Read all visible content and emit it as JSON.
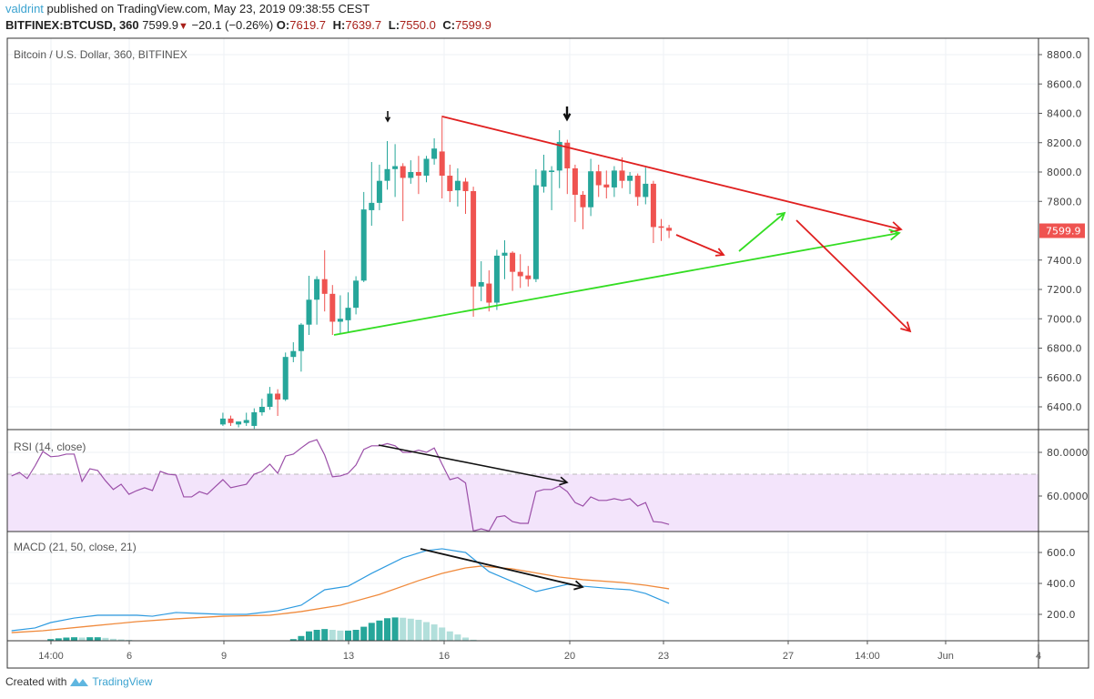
{
  "header": {
    "user": "valdrint",
    "published_text": "published on TradingView.com, May 23, 2019 09:38:55 CEST",
    "symbol": "BITFINEX:BTCUSD, 360",
    "last": "7599.9",
    "change": "−20.1 (−0.26%)",
    "change_direction": "down",
    "open_label": "O:",
    "open": "7619.7",
    "high_label": "H:",
    "high": "7639.7",
    "low_label": "L:",
    "low": "7550.0",
    "close_label": "C:",
    "close": "7599.9"
  },
  "footer": {
    "created_with": "Created with",
    "brand": "TradingView"
  },
  "colors": {
    "up": "#26a69a",
    "down": "#ef5350",
    "hist_up": "#26a69a",
    "hist_down": "#b2dfdb",
    "rsi": "#9b4fa8",
    "rsi_band": "#f3e4fb",
    "macd": "#2e9be0",
    "signal": "#f08a3c",
    "trend_down": "#e02020",
    "trend_up": "#33dd22",
    "annotation": "#111111",
    "price_badge": "#ef5350"
  },
  "chart_data": [
    {
      "type": "candlestick",
      "title": "Bitcoin / U.S. Dollar, 360, BITFINEX",
      "y_ticks": [
        "8800.0",
        "8600.0",
        "8400.0",
        "8200.0",
        "8000.0",
        "7800.0",
        "7400.0",
        "7200.0",
        "7000.0",
        "6800.0",
        "6600.0",
        "6400.0"
      ],
      "current_price": "7599.9",
      "ylim": [
        6250,
        8910
      ],
      "grid": true,
      "x_ticks": [
        "14:00",
        "6",
        "9",
        "13",
        "16",
        "20",
        "23",
        "27",
        "14:00",
        "Jun",
        "4"
      ],
      "ohlc_columns": [
        "time",
        "open",
        "high",
        "low",
        "close"
      ],
      "candles": [
        [
          "05-09 00:00",
          6280,
          6360,
          6270,
          6320
        ],
        [
          "05-09 06:00",
          6320,
          6340,
          6270,
          6290
        ],
        [
          "05-09 12:00",
          6280,
          6300,
          6260,
          6300
        ],
        [
          "05-09 18:00",
          6290,
          6360,
          6270,
          6310
        ],
        [
          "05-10 00:00",
          6270,
          6390,
          6250,
          6363
        ],
        [
          "05-10 06:00",
          6363,
          6456,
          6340,
          6400
        ],
        [
          "05-10 12:00",
          6400,
          6536,
          6380,
          6490
        ],
        [
          "05-10 18:00",
          6490,
          6520,
          6338,
          6450
        ],
        [
          "05-11 00:00",
          6450,
          6770,
          6440,
          6740
        ],
        [
          "05-11 06:00",
          6740,
          6840,
          6704,
          6780
        ],
        [
          "05-11 12:00",
          6780,
          6970,
          6640,
          6960
        ],
        [
          "05-11 18:00",
          6960,
          7293,
          6890,
          7130
        ],
        [
          "05-12 00:00",
          7130,
          7290,
          6960,
          7270
        ],
        [
          "05-12 06:00",
          7270,
          7467,
          7050,
          7170
        ],
        [
          "05-12 12:00",
          7170,
          7230,
          6890,
          6980
        ],
        [
          "05-12 18:00",
          6980,
          7160,
          6900,
          7000
        ],
        [
          "05-13 00:00",
          6990,
          7180,
          6910,
          7075
        ],
        [
          "05-13 06:00",
          7075,
          7290,
          7030,
          7260
        ],
        [
          "05-13 12:00",
          7260,
          7864,
          7250,
          7745
        ],
        [
          "05-13 18:00",
          7740,
          8068,
          7634,
          7790
        ],
        [
          "05-14 00:00",
          7790,
          8050,
          7740,
          7940
        ],
        [
          "05-14 06:00",
          7940,
          8211,
          7880,
          8020
        ],
        [
          "05-14 12:00",
          8020,
          8190,
          7830,
          8040
        ],
        [
          "05-14 18:00",
          8040,
          8060,
          7665,
          7960
        ],
        [
          "05-15 00:00",
          7960,
          8080,
          7920,
          8000
        ],
        [
          "05-15 06:00",
          8000,
          8110,
          7850,
          7975
        ],
        [
          "05-15 12:00",
          7975,
          8110,
          7930,
          8090
        ],
        [
          "05-15 18:00",
          8090,
          8230,
          8050,
          8160
        ],
        [
          "05-16 00:00",
          8140,
          8384,
          7820,
          7975
        ],
        [
          "05-16 06:00",
          7975,
          8050,
          7795,
          7870
        ],
        [
          "05-16 12:00",
          7875,
          8025,
          7765,
          7940
        ],
        [
          "05-16 18:00",
          7935,
          7960,
          7715,
          7870
        ],
        [
          "05-17 00:00",
          7870,
          7900,
          7014,
          7220
        ],
        [
          "05-17 06:00",
          7220,
          7392,
          7120,
          7250
        ],
        [
          "05-17 12:00",
          7240,
          7330,
          7050,
          7110
        ],
        [
          "05-17 18:00",
          7110,
          7470,
          7060,
          7430
        ],
        [
          "05-18 00:00",
          7430,
          7535,
          7270,
          7450
        ],
        [
          "05-18 06:00",
          7450,
          7460,
          7190,
          7320
        ],
        [
          "05-18 12:00",
          7320,
          7440,
          7210,
          7290
        ],
        [
          "05-18 18:00",
          7295,
          7360,
          7220,
          7270
        ],
        [
          "05-19 00:00",
          7270,
          8019,
          7250,
          7910
        ],
        [
          "05-19 06:00",
          7900,
          8118,
          7860,
          8010
        ],
        [
          "05-19 12:00",
          8000,
          8040,
          7740,
          8010
        ],
        [
          "05-19 18:00",
          8010,
          8285,
          7890,
          8205
        ],
        [
          "05-20 00:00",
          8200,
          8220,
          7850,
          8025
        ],
        [
          "05-20 06:00",
          8025,
          8050,
          7660,
          7845
        ],
        [
          "05-20 12:00",
          7845,
          7870,
          7610,
          7760
        ],
        [
          "05-20 18:00",
          7760,
          8090,
          7700,
          8005
        ],
        [
          "05-21 00:00",
          8005,
          8050,
          7830,
          7910
        ],
        [
          "05-21 06:00",
          7915,
          8010,
          7820,
          7895
        ],
        [
          "05-21 12:00",
          7895,
          8040,
          7830,
          8010
        ],
        [
          "05-21 18:00",
          8010,
          8100,
          7890,
          7940
        ],
        [
          "05-22 00:00",
          7940,
          8000,
          7850,
          7975
        ],
        [
          "05-22 06:00",
          7975,
          7990,
          7770,
          7830
        ],
        [
          "05-22 12:00",
          7830,
          8030,
          7780,
          7920
        ],
        [
          "05-22 18:00",
          7920,
          7940,
          7516,
          7625
        ],
        [
          "05-23 00:00",
          7630,
          7680,
          7530,
          7620
        ],
        [
          "05-23 06:00",
          7619.7,
          7639.7,
          7550.0,
          7599.9
        ]
      ]
    },
    {
      "type": "line",
      "title": "RSI (14, close)",
      "y_ticks": [
        "80.0000",
        "60.0000"
      ],
      "band": [
        30,
        70
      ],
      "points": [
        [
          "05-02 06:00",
          69.2
        ],
        [
          "05-02 12:00",
          70.8
        ],
        [
          "05-02 18:00",
          68
        ],
        [
          "05-03 00:00",
          73.8
        ],
        [
          "05-03 06:00",
          80.4
        ],
        [
          "05-03 12:00",
          78
        ],
        [
          "05-03 18:00",
          78.3
        ],
        [
          "05-04 00:00",
          79.2
        ],
        [
          "05-04 06:00",
          79.2
        ],
        [
          "05-04 12:00",
          66.7
        ],
        [
          "05-04 18:00",
          72.5
        ],
        [
          "05-05 00:00",
          71.7
        ],
        [
          "05-05 06:00",
          67
        ],
        [
          "05-05 12:00",
          63
        ],
        [
          "05-05 18:00",
          65.4
        ],
        [
          "05-06 00:00",
          60.8
        ],
        [
          "05-06 06:00",
          62.5
        ],
        [
          "05-06 12:00",
          63.8
        ],
        [
          "05-06 18:00",
          62.5
        ],
        [
          "05-07 00:00",
          71.3
        ],
        [
          "05-07 06:00",
          70
        ],
        [
          "05-07 12:00",
          69.6
        ],
        [
          "05-07 18:00",
          59.6
        ],
        [
          "05-08 00:00",
          59.6
        ],
        [
          "05-08 06:00",
          62
        ],
        [
          "05-08 12:00",
          60.8
        ],
        [
          "05-08 18:00",
          64.2
        ],
        [
          "05-09 00:00",
          67.5
        ],
        [
          "05-09 06:00",
          63.8
        ],
        [
          "05-09 12:00",
          64.6
        ],
        [
          "05-09 18:00",
          65.4
        ],
        [
          "05-10 00:00",
          70
        ],
        [
          "05-10 06:00",
          71.3
        ],
        [
          "05-10 12:00",
          74.6
        ],
        [
          "05-10 18:00",
          70.4
        ],
        [
          "05-11 00:00",
          78.3
        ],
        [
          "05-11 06:00",
          79.2
        ],
        [
          "05-11 12:00",
          82
        ],
        [
          "05-11 18:00",
          84.6
        ],
        [
          "05-12 00:00",
          85.8
        ],
        [
          "05-12 06:00",
          78.8
        ],
        [
          "05-12 12:00",
          68.8
        ],
        [
          "05-12 18:00",
          69.2
        ],
        [
          "05-13 00:00",
          70.4
        ],
        [
          "05-13 06:00",
          74.2
        ],
        [
          "05-13 12:00",
          81.3
        ],
        [
          "05-13 18:00",
          83
        ],
        [
          "05-14 00:00",
          83
        ],
        [
          "05-14 06:00",
          84
        ],
        [
          "05-14 12:00",
          83
        ],
        [
          "05-14 18:00",
          80
        ],
        [
          "05-15 00:00",
          80
        ],
        [
          "05-15 06:00",
          81
        ],
        [
          "05-15 12:00",
          80
        ],
        [
          "05-15 18:00",
          82
        ],
        [
          "05-16 00:00",
          74.6
        ],
        [
          "05-16 06:00",
          67.5
        ],
        [
          "05-16 12:00",
          68.5
        ],
        [
          "05-16 18:00",
          66
        ],
        [
          "05-17 00:00",
          44
        ],
        [
          "05-17 06:00",
          45
        ],
        [
          "05-17 12:00",
          44
        ],
        [
          "05-17 18:00",
          50.4
        ],
        [
          "05-18 00:00",
          51
        ],
        [
          "05-18 06:00",
          48.3
        ],
        [
          "05-18 12:00",
          47.5
        ],
        [
          "05-18 18:00",
          47.5
        ],
        [
          "05-19 00:00",
          62
        ],
        [
          "05-19 06:00",
          63
        ],
        [
          "05-19 12:00",
          63
        ],
        [
          "05-19 18:00",
          64.6
        ],
        [
          "05-20 00:00",
          62
        ],
        [
          "05-20 06:00",
          57
        ],
        [
          "05-20 12:00",
          55.4
        ],
        [
          "05-20 18:00",
          59.6
        ],
        [
          "05-21 00:00",
          58
        ],
        [
          "05-21 06:00",
          58
        ],
        [
          "05-21 12:00",
          58.8
        ],
        [
          "05-21 18:00",
          58
        ],
        [
          "05-22 00:00",
          58.8
        ],
        [
          "05-22 06:00",
          55.4
        ],
        [
          "05-22 12:00",
          57
        ],
        [
          "05-22 18:00",
          48.3
        ],
        [
          "05-23 00:00",
          48
        ],
        [
          "05-23 06:00",
          47
        ]
      ]
    },
    {
      "type": "line",
      "title": "MACD (21, 50, close, 21)",
      "y_ticks": [
        "600.0",
        "400.0",
        "200.0"
      ],
      "macd": [
        [
          "05-02 06:00",
          94
        ],
        [
          "05-03 00:00",
          112
        ],
        [
          "05-03 12:00",
          147
        ],
        [
          "05-04 06:00",
          176
        ],
        [
          "05-05 00:00",
          194
        ],
        [
          "05-05 18:00",
          194
        ],
        [
          "05-06 06:00",
          194
        ],
        [
          "05-06 18:00",
          188
        ],
        [
          "05-07 12:00",
          212
        ],
        [
          "05-08 06:00",
          206
        ],
        [
          "05-09 00:00",
          200
        ],
        [
          "05-09 18:00",
          200
        ],
        [
          "05-10 18:00",
          224
        ],
        [
          "05-11 12:00",
          259
        ],
        [
          "05-12 06:00",
          359
        ],
        [
          "05-13 00:00",
          382
        ],
        [
          "05-13 18:00",
          465
        ],
        [
          "05-14 18:00",
          565
        ],
        [
          "05-15 12:00",
          612
        ],
        [
          "05-16 00:00",
          624
        ],
        [
          "05-16 18:00",
          600
        ],
        [
          "05-17 12:00",
          476
        ],
        [
          "05-19 00:00",
          347
        ],
        [
          "05-20 00:00",
          394
        ],
        [
          "05-20 12:00",
          382
        ],
        [
          "05-21 12:00",
          365
        ],
        [
          "05-22 00:00",
          359
        ],
        [
          "05-22 12:00",
          335
        ],
        [
          "05-23 06:00",
          271
        ]
      ],
      "signal": [
        [
          "05-02 06:00",
          82
        ],
        [
          "05-03 06:00",
          94
        ],
        [
          "05-04 18:00",
          124
        ],
        [
          "05-06 06:00",
          153
        ],
        [
          "05-07 12:00",
          171
        ],
        [
          "05-09 00:00",
          188
        ],
        [
          "05-10 12:00",
          194
        ],
        [
          "05-11 12:00",
          218
        ],
        [
          "05-12 18:00",
          259
        ],
        [
          "05-14 00:00",
          329
        ],
        [
          "05-15 06:00",
          418
        ],
        [
          "05-16 00:00",
          465
        ],
        [
          "05-16 18:00",
          500
        ],
        [
          "05-17 06:00",
          512
        ],
        [
          "05-18 06:00",
          494
        ],
        [
          "05-19 18:00",
          441
        ],
        [
          "05-20 12:00",
          424
        ],
        [
          "05-21 18:00",
          406
        ],
        [
          "05-22 12:00",
          388
        ],
        [
          "05-23 06:00",
          365
        ]
      ],
      "histogram": [
        [
          "05-03 12:00",
          40
        ],
        [
          "05-03 18:00",
          45
        ],
        [
          "05-04 00:00",
          50
        ],
        [
          "05-04 06:00",
          52
        ],
        [
          "05-04 12:00",
          50
        ],
        [
          "05-04 18:00",
          52
        ],
        [
          "05-05 00:00",
          52
        ],
        [
          "05-05 06:00",
          48
        ],
        [
          "05-05 12:00",
          42
        ],
        [
          "05-05 18:00",
          38
        ],
        [
          "05-06 00:00",
          35
        ],
        [
          "05-11 06:00",
          40
        ],
        [
          "05-11 12:00",
          60
        ],
        [
          "05-11 18:00",
          90
        ],
        [
          "05-12 00:00",
          100
        ],
        [
          "05-12 06:00",
          105
        ],
        [
          "05-12 12:00",
          100
        ],
        [
          "05-12 18:00",
          95
        ],
        [
          "05-13 00:00",
          95
        ],
        [
          "05-13 06:00",
          100
        ],
        [
          "05-13 12:00",
          120
        ],
        [
          "05-13 18:00",
          145
        ],
        [
          "05-14 00:00",
          160
        ],
        [
          "05-14 06:00",
          175
        ],
        [
          "05-14 12:00",
          180
        ],
        [
          "05-14 18:00",
          178
        ],
        [
          "05-15 00:00",
          172
        ],
        [
          "05-15 06:00",
          165
        ],
        [
          "05-15 12:00",
          150
        ],
        [
          "05-15 18:00",
          135
        ],
        [
          "05-16 00:00",
          115
        ],
        [
          "05-16 06:00",
          90
        ],
        [
          "05-16 12:00",
          70
        ],
        [
          "05-16 18:00",
          50
        ],
        [
          "05-17 00:00",
          36
        ]
      ]
    }
  ]
}
